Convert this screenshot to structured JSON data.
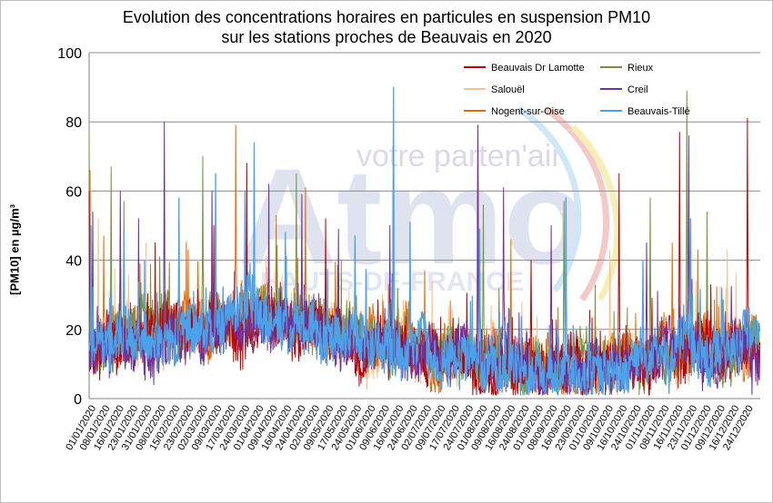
{
  "chart_data": {
    "type": "line",
    "title": "Evolution des concentrations horaires en particules en suspension PM10",
    "subtitle": "sur les stations proches de Beauvais en 2020",
    "xlabel": "",
    "ylabel": "[PM10] en µg/m³",
    "ylim": [
      0,
      100
    ],
    "yticks": [
      0,
      20,
      40,
      60,
      80,
      100
    ],
    "grid": true,
    "legend_position": "top-right",
    "x_tick_labels": [
      "01/01/2020",
      "08/01/2020",
      "16/01/2020",
      "23/01/2020",
      "31/01/2020",
      "08/02/2020",
      "15/02/2020",
      "23/02/2020",
      "02/03/2020",
      "09/03/2020",
      "17/03/2020",
      "24/03/2020",
      "01/04/2020",
      "09/04/2020",
      "16/04/2020",
      "24/04/2020",
      "02/05/2020",
      "09/05/2020",
      "17/05/2020",
      "24/05/2020",
      "01/06/2020",
      "09/06/2020",
      "16/06/2020",
      "24/06/2020",
      "02/07/2020",
      "09/07/2020",
      "17/07/2020",
      "24/07/2020",
      "01/08/2020",
      "09/08/2020",
      "16/08/2020",
      "24/08/2020",
      "01/09/2020",
      "08/09/2020",
      "16/09/2020",
      "23/09/2020",
      "01/10/2020",
      "09/10/2020",
      "16/10/2020",
      "24/10/2020",
      "01/11/2020",
      "08/11/2020",
      "16/11/2020",
      "23/11/2020",
      "01/12/2020",
      "09/12/2020",
      "16/12/2020",
      "24/12/2020"
    ],
    "series": [
      {
        "name": "Beauvais Dr Lamotte",
        "color": "#c00000",
        "peaks": [
          [
            0.1,
            60
          ],
          [
            36,
            45
          ],
          [
            68,
            50
          ],
          [
            86,
            68
          ],
          [
            129,
            52
          ],
          [
            212,
            79
          ],
          [
            241,
            40
          ],
          [
            289,
            65
          ],
          [
            322,
            77
          ],
          [
            359,
            81
          ],
          [
            360,
            24
          ]
        ]
      },
      {
        "name": "Rieux",
        "color": "#77933c",
        "peaks": [
          [
            0.1,
            77
          ],
          [
            12,
            67
          ],
          [
            19,
            57
          ],
          [
            62,
            70
          ],
          [
            90,
            66
          ],
          [
            113,
            65
          ],
          [
            215,
            56
          ],
          [
            259,
            57
          ],
          [
            306,
            58
          ],
          [
            326,
            89
          ],
          [
            337,
            54
          ]
        ]
      },
      {
        "name": "Salouël",
        "color": "#fac090",
        "peaks": [
          [
            5,
            52
          ],
          [
            31,
            45
          ],
          [
            60,
            40
          ],
          [
            97,
            38
          ],
          [
            160,
            30
          ],
          [
            198,
            26
          ],
          [
            236,
            28
          ],
          [
            284,
            43
          ],
          [
            331,
            34
          ],
          [
            348,
            43
          ]
        ]
      },
      {
        "name": "Creil",
        "color": "#7030a0",
        "peaks": [
          [
            2,
            54
          ],
          [
            17,
            60
          ],
          [
            27,
            52
          ],
          [
            41,
            80
          ],
          [
            67,
            60
          ],
          [
            98,
            62
          ],
          [
            116,
            59
          ],
          [
            136,
            49
          ],
          [
            164,
            50
          ],
          [
            212,
            79
          ],
          [
            226,
            61
          ],
          [
            252,
            50
          ],
          [
            304,
            45
          ],
          [
            327,
            76
          ],
          [
            347,
            25
          ]
        ]
      },
      {
        "name": "Nogent-sur-Oise",
        "color": "#e46c0a",
        "peaks": [
          [
            0.5,
            66
          ],
          [
            8,
            47
          ],
          [
            54,
            43
          ],
          [
            80,
            79
          ],
          [
            102,
            53
          ],
          [
            118,
            61
          ],
          [
            145,
            47
          ],
          [
            183,
            37
          ],
          [
            230,
            46
          ],
          [
            318,
            45
          ],
          [
            332,
            43
          ]
        ]
      },
      {
        "name": "Beauvais-Tillé",
        "color": "#4aa3ea",
        "peaks": [
          [
            1,
            50
          ],
          [
            19,
            48
          ],
          [
            49,
            58
          ],
          [
            69,
            65
          ],
          [
            85,
            60
          ],
          [
            90,
            74
          ],
          [
            107,
            48
          ],
          [
            145,
            47
          ],
          [
            166,
            90
          ],
          [
            175,
            51
          ],
          [
            213,
            49
          ],
          [
            260,
            58
          ],
          [
            302,
            40
          ],
          [
            328,
            52
          ],
          [
            345,
            32
          ]
        ]
      }
    ]
  },
  "watermark": {
    "tagline": "votre parten'air",
    "brand": "Atmo",
    "region": "HAUTS-DE-FRANCE"
  }
}
